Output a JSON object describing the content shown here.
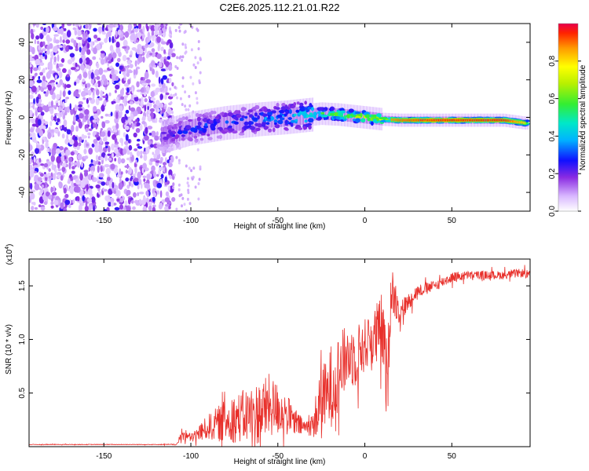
{
  "title": "C2E6.2025.112.21.01.R22",
  "chart_data": [
    {
      "type": "heatmap",
      "title": "C2E6.2025.112.21.01.R22",
      "xlabel": "Height of straight line (km)",
      "ylabel": "Frequency (Hz)",
      "xlim": [
        -193,
        95
      ],
      "ylim": [
        -50,
        50
      ],
      "xticks": [
        -150,
        -100,
        -50,
        0,
        50
      ],
      "yticks": [
        -40,
        -20,
        0,
        20,
        40
      ],
      "colorbar": {
        "label": "Normalized spectral amplitude",
        "range": [
          0,
          1
        ],
        "ticks": [
          0.0,
          0.2,
          0.4,
          0.6,
          0.8
        ],
        "tick_labels": [
          "0.0",
          "0.2",
          "0.4",
          "0.6",
          "0.8"
        ]
      },
      "ridge": {
        "x": [
          -115,
          -100,
          -80,
          -60,
          -45,
          -35,
          -25,
          -15,
          -5,
          0,
          10,
          20,
          40,
          60,
          80,
          92
        ],
        "frequency": [
          -10,
          -6,
          -3,
          -1,
          0,
          1,
          2,
          1.5,
          0.5,
          0,
          -1,
          -1.5,
          -1.5,
          -1.5,
          -1.5,
          -3
        ],
        "peak_amplitude": [
          0.25,
          0.35,
          0.35,
          0.4,
          0.45,
          0.55,
          0.65,
          0.7,
          0.75,
          0.8,
          0.85,
          0.9,
          0.95,
          0.95,
          0.95,
          0.8
        ]
      },
      "noise_region_x": [
        -193,
        -110
      ]
    },
    {
      "type": "line",
      "xlabel": "Height of straight line (km)",
      "ylabel": "SNR (10 * v/v)",
      "y_multiplier": "(x10^4)",
      "y_multiplier_base": "(x10",
      "y_multiplier_exp": "4",
      "xlim": [
        -193,
        95
      ],
      "ylim": [
        0,
        1.75
      ],
      "xticks": [
        -150,
        -100,
        -50,
        0,
        50
      ],
      "yticks": [
        0.5,
        1.0,
        1.5
      ],
      "ytick_labels": [
        "0.5",
        "1.0",
        "1.5"
      ],
      "color": "#e8302b",
      "series": [
        {
          "name": "SNR",
          "x": [
            -193,
            -150,
            -120,
            -108,
            -105,
            -100,
            -90,
            -80,
            -70,
            -60,
            -55,
            -50,
            -45,
            -40,
            -35,
            -30,
            -27,
            -25,
            -22,
            -20,
            -15,
            -10,
            -5,
            0,
            5,
            10,
            13,
            15,
            20,
            25,
            30,
            40,
            50,
            60,
            70,
            80,
            90,
            95
          ],
          "y": [
            0.02,
            0.02,
            0.02,
            0.02,
            0.12,
            0.08,
            0.18,
            0.24,
            0.28,
            0.32,
            0.38,
            0.35,
            0.3,
            0.22,
            0.18,
            0.2,
            0.32,
            0.5,
            0.45,
            0.55,
            0.7,
            0.85,
            0.85,
            0.95,
            1.0,
            1.1,
            0.55,
            1.5,
            1.25,
            1.35,
            1.45,
            1.5,
            1.58,
            1.6,
            1.6,
            1.6,
            1.62,
            1.6
          ],
          "amplitude": [
            0.003,
            0.003,
            0.003,
            0.005,
            0.06,
            0.04,
            0.12,
            0.2,
            0.25,
            0.3,
            0.3,
            0.25,
            0.2,
            0.12,
            0.08,
            0.1,
            0.3,
            0.45,
            0.3,
            0.4,
            0.35,
            0.3,
            0.3,
            0.25,
            0.3,
            0.35,
            0.4,
            0.25,
            0.12,
            0.08,
            0.06,
            0.05,
            0.05,
            0.04,
            0.04,
            0.04,
            0.04,
            0.04
          ]
        }
      ]
    }
  ]
}
